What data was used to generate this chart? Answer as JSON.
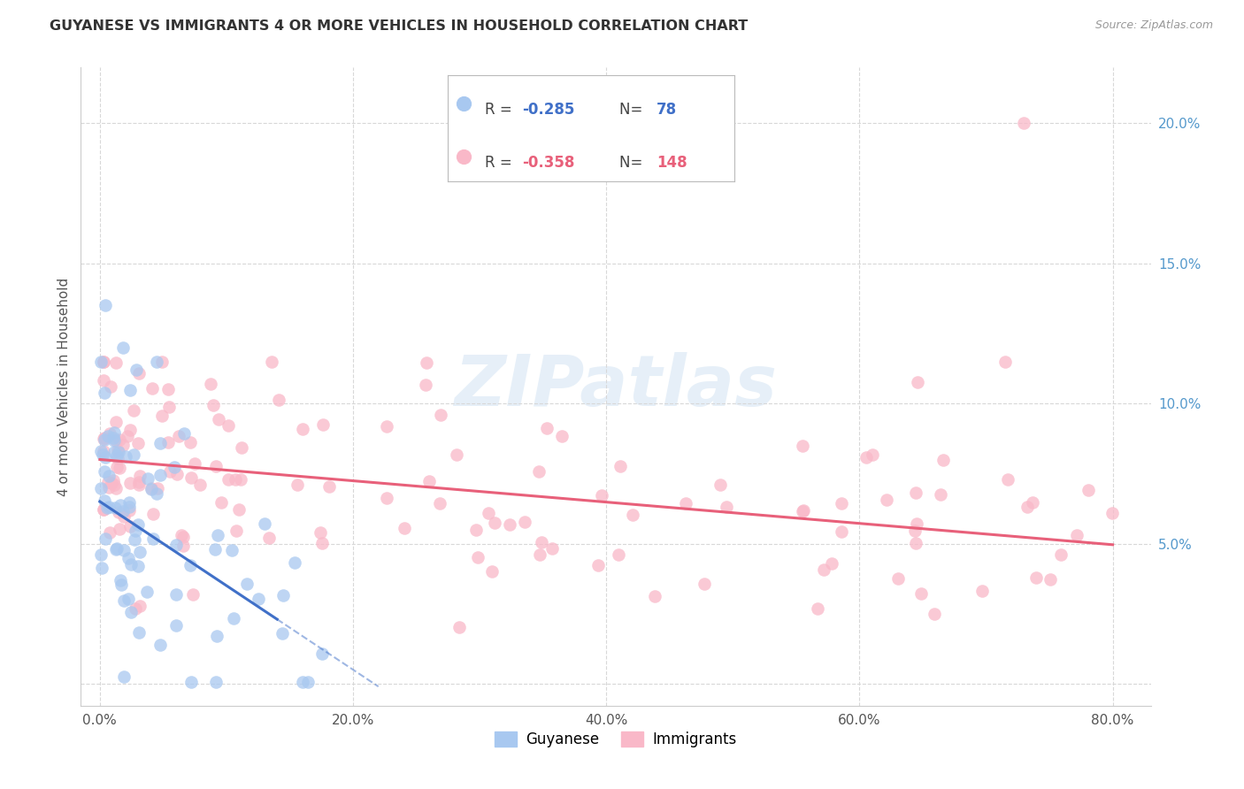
{
  "title": "GUYANESE VS IMMIGRANTS 4 OR MORE VEHICLES IN HOUSEHOLD CORRELATION CHART",
  "source": "Source: ZipAtlas.com",
  "ylabel": "4 or more Vehicles in Household",
  "watermark": "ZIPatlas",
  "guyanese_color": "#a8c8f0",
  "guyanese_edge_color": "#7ab0e0",
  "immigrants_color": "#f9b8c8",
  "immigrants_edge_color": "#f080a0",
  "guyanese_line_color": "#4070c8",
  "immigrants_line_color": "#e8607a",
  "background_color": "#ffffff",
  "grid_color": "#d8d8d8",
  "right_axis_color": "#5599cc",
  "legend_R_blue": "-0.285",
  "legend_N_blue": "78",
  "legend_R_pink": "-0.358",
  "legend_N_pink": "148",
  "x_ticks": [
    0,
    20,
    40,
    60,
    80
  ],
  "x_tick_labels": [
    "0.0%",
    "20.0%",
    "40.0%",
    "60.0%",
    "80.0%"
  ],
  "y_ticks": [
    0,
    5,
    10,
    15,
    20
  ],
  "y_tick_labels_right": [
    "",
    "5.0%",
    "10.0%",
    "15.0%",
    "20.0%"
  ],
  "xlim": [
    -1.5,
    83
  ],
  "ylim": [
    -0.8,
    22
  ]
}
